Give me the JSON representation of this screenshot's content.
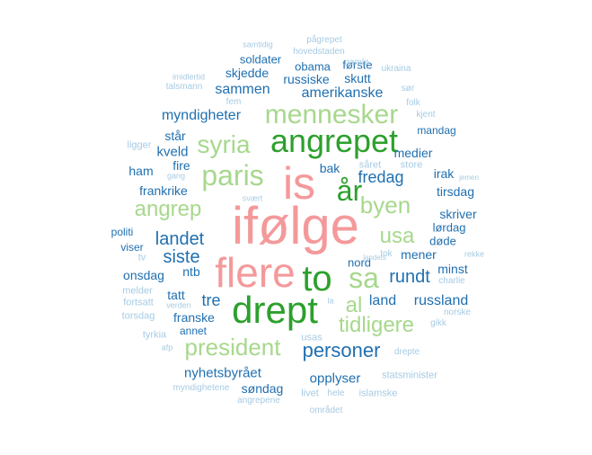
{
  "colors": {
    "pink": "#f4999b",
    "dark_green": "#2ca02c",
    "light_green": "#a7d88d",
    "dark_blue": "#1f6fb0",
    "light_blue": "#a6cbe3"
  },
  "words": [
    {
      "text": "ifølge",
      "color": "pink"
    },
    {
      "text": "is",
      "color": "pink"
    },
    {
      "text": "flere",
      "color": "pink"
    },
    {
      "text": "angrepet",
      "color": "dark_green"
    },
    {
      "text": "drept",
      "color": "dark_green"
    },
    {
      "text": "to",
      "color": "dark_green"
    },
    {
      "text": "år",
      "color": "dark_green"
    },
    {
      "text": "mennesker",
      "color": "light_green"
    },
    {
      "text": "paris",
      "color": "light_green"
    },
    {
      "text": "syria",
      "color": "light_green"
    },
    {
      "text": "angrep",
      "color": "light_green"
    },
    {
      "text": "byen",
      "color": "light_green"
    },
    {
      "text": "usa",
      "color": "light_green"
    },
    {
      "text": "sa",
      "color": "light_green"
    },
    {
      "text": "al",
      "color": "light_green"
    },
    {
      "text": "tidligere",
      "color": "light_green"
    },
    {
      "text": "president",
      "color": "light_green"
    },
    {
      "text": "personer",
      "color": "dark_blue"
    },
    {
      "text": "rundt",
      "color": "dark_blue"
    },
    {
      "text": "landet",
      "color": "dark_blue"
    },
    {
      "text": "siste",
      "color": "dark_blue"
    },
    {
      "text": "fredag",
      "color": "dark_blue"
    },
    {
      "text": "myndigheter",
      "color": "dark_blue"
    },
    {
      "text": "sammen",
      "color": "dark_blue"
    },
    {
      "text": "amerikanske",
      "color": "dark_blue"
    },
    {
      "text": "russiske",
      "color": "dark_blue"
    },
    {
      "text": "obama",
      "color": "dark_blue"
    },
    {
      "text": "skjedde",
      "color": "dark_blue"
    },
    {
      "text": "soldater",
      "color": "dark_blue"
    },
    {
      "text": "skutt",
      "color": "dark_blue"
    },
    {
      "text": "første",
      "color": "dark_blue"
    },
    {
      "text": "står",
      "color": "dark_blue"
    },
    {
      "text": "kveld",
      "color": "dark_blue"
    },
    {
      "text": "fire",
      "color": "dark_blue"
    },
    {
      "text": "ham",
      "color": "dark_blue"
    },
    {
      "text": "frankrike",
      "color": "dark_blue"
    },
    {
      "text": "bak",
      "color": "dark_blue"
    },
    {
      "text": "medier",
      "color": "dark_blue"
    },
    {
      "text": "irak",
      "color": "dark_blue"
    },
    {
      "text": "tirsdag",
      "color": "dark_blue"
    },
    {
      "text": "skriver",
      "color": "dark_blue"
    },
    {
      "text": "lørdag",
      "color": "dark_blue"
    },
    {
      "text": "døde",
      "color": "dark_blue"
    },
    {
      "text": "mener",
      "color": "dark_blue"
    },
    {
      "text": "minst",
      "color": "dark_blue"
    },
    {
      "text": "nord",
      "color": "dark_blue"
    },
    {
      "text": "politi",
      "color": "dark_blue"
    },
    {
      "text": "viser",
      "color": "dark_blue"
    },
    {
      "text": "onsdag",
      "color": "dark_blue"
    },
    {
      "text": "ntb",
      "color": "dark_blue"
    },
    {
      "text": "tatt",
      "color": "dark_blue"
    },
    {
      "text": "tre",
      "color": "dark_blue"
    },
    {
      "text": "franske",
      "color": "dark_blue"
    },
    {
      "text": "annet",
      "color": "dark_blue"
    },
    {
      "text": "land",
      "color": "dark_blue"
    },
    {
      "text": "russland",
      "color": "dark_blue"
    },
    {
      "text": "nyhetsbyrået",
      "color": "dark_blue"
    },
    {
      "text": "opplyser",
      "color": "dark_blue"
    },
    {
      "text": "søndag",
      "color": "dark_blue"
    },
    {
      "text": "mandag",
      "color": "dark_blue"
    },
    {
      "text": "samtidig",
      "color": "light_blue"
    },
    {
      "text": "pågrepet",
      "color": "light_blue"
    },
    {
      "text": "hovedstaden",
      "color": "light_blue"
    },
    {
      "text": "gamle",
      "color": "light_blue"
    },
    {
      "text": "ukraina",
      "color": "light_blue"
    },
    {
      "text": "imidlertid",
      "color": "light_blue"
    },
    {
      "text": "talsmann",
      "color": "light_blue"
    },
    {
      "text": "fem",
      "color": "light_blue"
    },
    {
      "text": "sør",
      "color": "light_blue"
    },
    {
      "text": "folk",
      "color": "light_blue"
    },
    {
      "text": "kjent",
      "color": "light_blue"
    },
    {
      "text": "ligger",
      "color": "light_blue"
    },
    {
      "text": "gang",
      "color": "light_blue"
    },
    {
      "text": "såret",
      "color": "light_blue"
    },
    {
      "text": "store",
      "color": "light_blue"
    },
    {
      "text": "jemen",
      "color": "light_blue"
    },
    {
      "text": "svært",
      "color": "light_blue"
    },
    {
      "text": "tv",
      "color": "light_blue"
    },
    {
      "text": "tok",
      "color": "light_blue"
    },
    {
      "text": "landets",
      "color": "light_blue"
    },
    {
      "text": "rekke",
      "color": "light_blue"
    },
    {
      "text": "charlie",
      "color": "light_blue"
    },
    {
      "text": "melder",
      "color": "light_blue"
    },
    {
      "text": "fortsatt",
      "color": "light_blue"
    },
    {
      "text": "torsdag",
      "color": "light_blue"
    },
    {
      "text": "verden",
      "color": "light_blue"
    },
    {
      "text": "la",
      "color": "light_blue"
    },
    {
      "text": "norske",
      "color": "light_blue"
    },
    {
      "text": "gikk",
      "color": "light_blue"
    },
    {
      "text": "tyrkia",
      "color": "light_blue"
    },
    {
      "text": "afp",
      "color": "light_blue"
    },
    {
      "text": "usas",
      "color": "light_blue"
    },
    {
      "text": "drepte",
      "color": "light_blue"
    },
    {
      "text": "statsminister",
      "color": "light_blue"
    },
    {
      "text": "myndighetene",
      "color": "light_blue"
    },
    {
      "text": "livet",
      "color": "light_blue"
    },
    {
      "text": "hele",
      "color": "light_blue"
    },
    {
      "text": "islamske",
      "color": "light_blue"
    },
    {
      "text": "angrepene",
      "color": "light_blue"
    },
    {
      "text": "området",
      "color": "light_blue"
    }
  ]
}
